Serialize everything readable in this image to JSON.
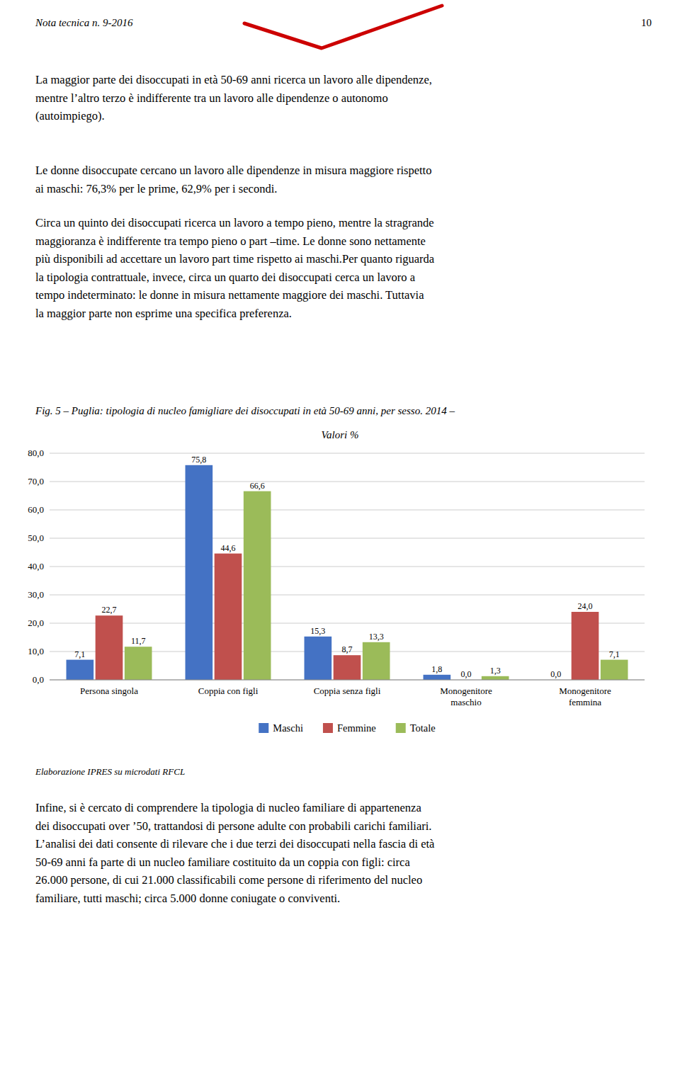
{
  "header_left": "Nota tecnica n. 9-2016",
  "header_right": "10",
  "paragraphs": [
    "La maggior parte dei disoccupati in età 50-69 anni ricerca un lavoro alle dipendenze,\nmentre l’altro terzo è indifferente tra un lavoro alle dipendenze o autonomo\n(autoimpiego).",
    "Le donne disoccupate cercano un lavoro alle dipendenze in misura maggiore rispetto\nai maschi: 76,3% per le prime, 62,9% per i secondi.",
    "Circa un quinto dei disoccupati ricerca un lavoro a tempo pieno, mentre la stragrande\nmaggioranza è indifferente tra tempo pieno o part –time. Le donne sono nettamente\npiù disponibili ad accettare un lavoro part time rispetto ai maschi.Per quanto riguarda\nla tipologia contrattuale, invece, circa un quarto dei disoccupati cerca un lavoro a\ntempo indeterminato: le donne in misura nettamente maggiore dei maschi. Tuttavia\nla maggior parte non esprime una specifica preferenza.",
    "Infine, si è cercato di comprendere la tipologia di nucleo familiare di appartenenza\ndei disoccupati over ’50, trattandosi di persone adulte con probabili carichi familiari.\nL’analisi dei dati consente di rilevare che i due terzi dei disoccupati nella fascia di età\n50-69 anni fa parte di un nucleo familiare costituito da un coppia con figli: circa\n26.000 persone, di cui 21.000 classificabili come persone di riferimento del nucleo\nfamiliare, tutti maschi; circa 5.000 donne coniugate o conviventi."
  ],
  "chart_data": {
    "type": "bar",
    "title": "Fig. 5 – Puglia: tipologia di nucleo famigliare dei disoccupati in età 50-69 anni, per sesso. 2014 –",
    "subtitle": "Valori %",
    "categories": [
      "Persona singola",
      "Coppia con figli",
      "Coppia senza figli",
      "Monogenitore\nmaschio",
      "Monogenitore\nfemmina"
    ],
    "series": [
      {
        "name": "Maschi",
        "color": "#4472C4",
        "values": [
          7.1,
          75.8,
          15.3,
          1.8,
          0.0
        ],
        "value_labels": [
          "7,1",
          "75,8",
          "15,3",
          "1,8",
          "0,0"
        ]
      },
      {
        "name": "Femmine",
        "color": "#C0504D",
        "values": [
          22.7,
          44.6,
          8.7,
          0.0,
          24.0
        ],
        "value_labels": [
          "22,7",
          "44,6",
          "8,7",
          "0,0",
          "24,0"
        ]
      },
      {
        "name": "Totale",
        "color": "#9BBB59",
        "values": [
          11.7,
          66.6,
          13.3,
          1.3,
          7.1
        ],
        "value_labels": [
          "11,7",
          "66,6",
          "13,3",
          "1,3",
          "7,1"
        ]
      }
    ],
    "ylim": [
      0,
      80
    ],
    "yticks": [
      {
        "value": 0,
        "label": "0,0"
      },
      {
        "value": 10,
        "label": "10,0"
      },
      {
        "value": 20,
        "label": "20,0"
      },
      {
        "value": 30,
        "label": "30,0"
      },
      {
        "value": 40,
        "label": "40,0"
      },
      {
        "value": 50,
        "label": "50,0"
      },
      {
        "value": 60,
        "label": "60,0"
      },
      {
        "value": 70,
        "label": "70,0"
      },
      {
        "value": 80,
        "label": "80,0"
      }
    ],
    "grid": true,
    "legend": "bottom",
    "data_labels": true,
    "annotations": [
      "Elaborazione IPRES su microdati RFCL"
    ]
  }
}
